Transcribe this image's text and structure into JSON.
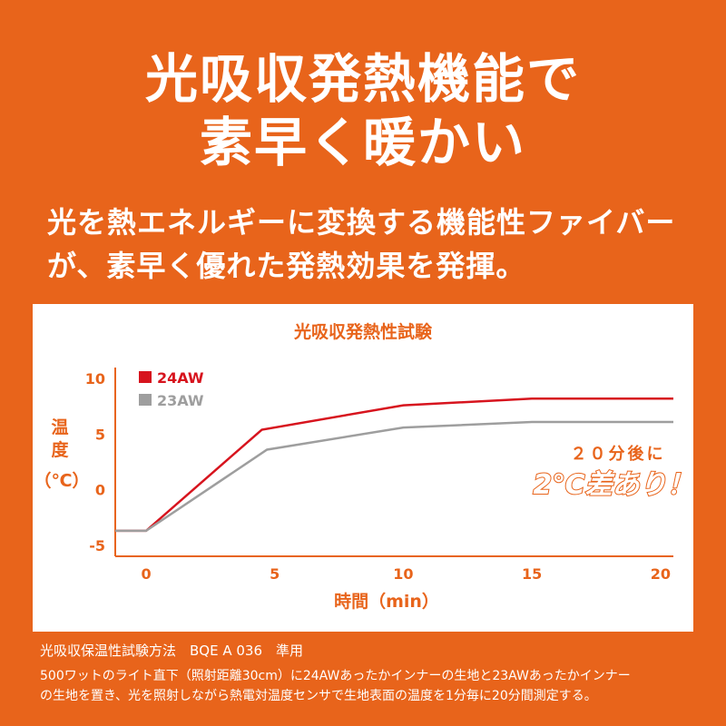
{
  "headline": {
    "line1": "光吸収発熱機能で",
    "line2": "素早く暖かい"
  },
  "subtext": {
    "line1": "光を熱エネルギーに変換する機能性ファイバー",
    "line2": "が、素早く優れた発熱効果を発揮。"
  },
  "chart_data": {
    "type": "line",
    "title": "光吸収発熱性試験",
    "xlabel": "時間（min）",
    "ylabel": "温度（℃）",
    "ylabel_chars": [
      "温",
      "度",
      "（℃）"
    ],
    "xlim": [
      -1.2,
      20.5
    ],
    "ylim": [
      -6,
      11
    ],
    "x_ticks": [
      0,
      5,
      10,
      15,
      20
    ],
    "y_ticks": [
      10,
      5,
      0,
      -5
    ],
    "grid": false,
    "legend_position": "top-left",
    "series": [
      {
        "name": "24AW",
        "color": "#d7141e",
        "x": [
          -1.2,
          0,
          4.5,
          10,
          15,
          20.5
        ],
        "y": [
          -3.7,
          -3.7,
          5.4,
          7.6,
          8.2,
          8.2
        ]
      },
      {
        "name": "23AW",
        "color": "#9e9e9e",
        "x": [
          -1.2,
          0,
          4.7,
          10,
          15,
          20.5
        ],
        "y": [
          -3.7,
          -3.7,
          3.6,
          5.6,
          6.1,
          6.1
        ]
      }
    ],
    "annotation": {
      "line1": "２０分後に",
      "line2": "2℃差あり！"
    }
  },
  "footer": {
    "line1": "光吸収保温性試験方法　BQE A 036　準用",
    "line2": "500ワットのライト直下（照射距離30cm）に24AWあったかインナーの生地と23AWあったかインナー",
    "line3": "の生地を置き、光を照射しながら熱電対温度センサで生地表面の温度を1分毎に20分間測定する。"
  }
}
